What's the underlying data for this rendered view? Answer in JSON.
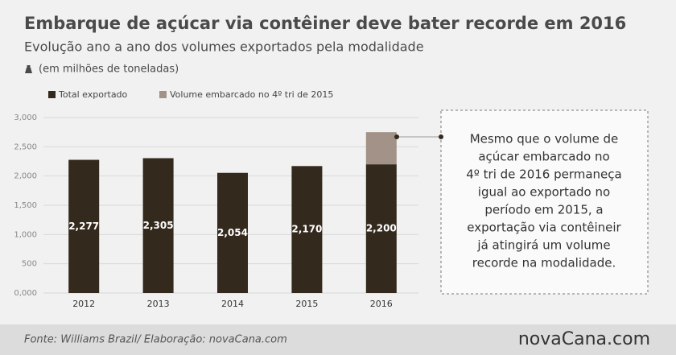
{
  "chart_data": {
    "type": "bar",
    "title": "Embarque de açúcar via contêiner deve bater recorde em 2016",
    "subtitle": "Evolução ano a ano dos volumes exportados pela modalidade",
    "unit_note": "(em milhões de toneladas)",
    "categories": [
      "2012",
      "2013",
      "2014",
      "2015",
      "2016"
    ],
    "stacked": true,
    "series": [
      {
        "name": "Total exportado",
        "color": "#33291c",
        "values": [
          2277,
          2305,
          2054,
          2170,
          2200
        ],
        "value_labels": [
          "2,277",
          "2,305",
          "2,054",
          "2,170",
          "2,200"
        ]
      },
      {
        "name": "Volume embarcado no 4º tri de 2015",
        "color": "#a39287",
        "values": [
          null,
          null,
          null,
          null,
          550
        ]
      }
    ],
    "ylim": [
      0,
      3000
    ],
    "yticks": [
      {
        "value": 0,
        "label": "0,000"
      },
      500,
      {
        "value": 1000,
        "label": "1,000"
      },
      {
        "value": 1500,
        "label": "1,500"
      },
      {
        "value": 2000,
        "label": "2,000"
      },
      {
        "value": 2500,
        "label": "2,500"
      },
      {
        "value": 3000,
        "label": "3,000"
      }
    ],
    "grid": true,
    "legend": "top-left",
    "annotation": [
      "Mesmo que o volume de",
      "açúcar embarcado no",
      "4º tri de 2016 permaneça",
      "igual ao exportado no",
      "período em 2015, a",
      "exportação via contêineir",
      "já atingirá um volume",
      "recorde na modalidade."
    ],
    "source": "Fonte:  Williams  Brazil/  Elaboração:  novaCana.com",
    "logo": "novaCana.com"
  }
}
